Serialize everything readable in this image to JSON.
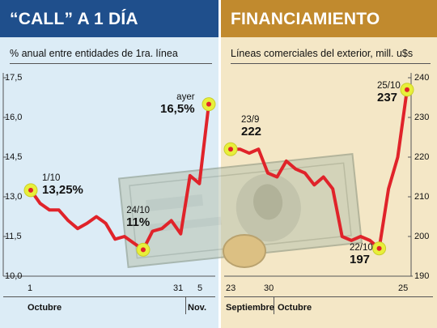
{
  "chart_data": [
    {
      "type": "line",
      "title": "“CALL” A 1 DÍA",
      "subtitle": "% anual entre entidades de 1ra. línea",
      "ylim": [
        10.0,
        17.5
      ],
      "y_ticks": [
        "17,5",
        "16,0",
        "14,5",
        "13,0",
        "11,5",
        "10,0"
      ],
      "x_ticks": [
        "1",
        "31",
        "5"
      ],
      "months": [
        "Octubre",
        "Nov."
      ],
      "grid": false,
      "line_color": "#e0232a",
      "values": [
        13.25,
        12.75,
        12.5,
        12.5,
        12.1,
        11.8,
        12.0,
        12.25,
        12.0,
        11.4,
        11.5,
        11.25,
        11.0,
        11.7,
        11.8,
        12.1,
        11.6,
        13.8,
        13.5,
        16.5
      ],
      "annotations": [
        {
          "label": "1/10",
          "value": "13,25%"
        },
        {
          "label": "24/10",
          "value": "11%"
        },
        {
          "label": "ayer",
          "value": "16,5%"
        }
      ]
    },
    {
      "type": "line",
      "title": "FINANCIAMIENTO",
      "subtitle": "Líneas comerciales del exterior, mill. u$s",
      "ylim": [
        190,
        240
      ],
      "y_ticks": [
        "240",
        "230",
        "220",
        "210",
        "200",
        "190"
      ],
      "x_ticks": [
        "23",
        "30",
        "25"
      ],
      "months": [
        "Septiembre",
        "Octubre"
      ],
      "grid": false,
      "line_color": "#e0232a",
      "values": [
        222,
        222,
        221,
        222,
        216,
        215,
        219,
        217,
        216,
        213,
        215,
        212,
        200,
        199,
        200,
        199,
        197,
        212,
        220,
        237
      ],
      "annotations": [
        {
          "label": "23/9",
          "value": "222"
        },
        {
          "label": "22/10",
          "value": "197"
        },
        {
          "label": "25/10",
          "value": "237"
        }
      ]
    }
  ]
}
